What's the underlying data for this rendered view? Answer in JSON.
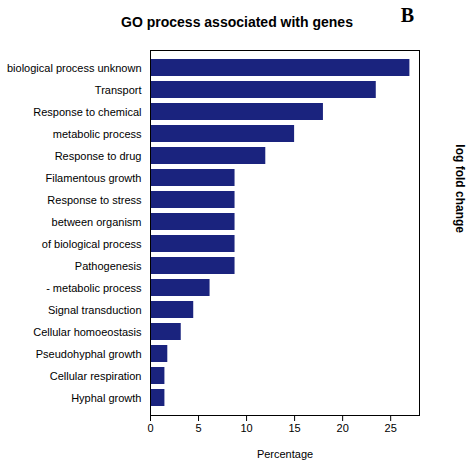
{
  "chart_data": {
    "type": "bar",
    "orientation": "horizontal",
    "title": "GO process associated with genes",
    "xlabel": "Percentage",
    "categories": [
      "Hyphal growth",
      "Cellular respiration",
      "Pseudohyphal growth",
      "Cellular homoeostasis",
      "Signal transduction",
      "- metabolic process",
      "Pathogenesis",
      "of biological process",
      "between organism",
      "Response to stress",
      "Filamentous growth",
      "Response to drug",
      "metabolic process",
      "Response to chemical",
      "Transport",
      "biological process unknown"
    ],
    "values": [
      1.5,
      1.5,
      1.8,
      3.2,
      4.5,
      6.2,
      8.8,
      8.8,
      8.8,
      8.8,
      8.8,
      12.0,
      15.0,
      18.0,
      23.5,
      27.0
    ],
    "color": "#1a237e",
    "xlim": [
      0,
      28
    ],
    "xticks": [
      0,
      5,
      10,
      15,
      20,
      25
    ],
    "grid": false,
    "annotations": [
      {
        "text": "B"
      },
      {
        "text": "log fold change"
      }
    ]
  }
}
